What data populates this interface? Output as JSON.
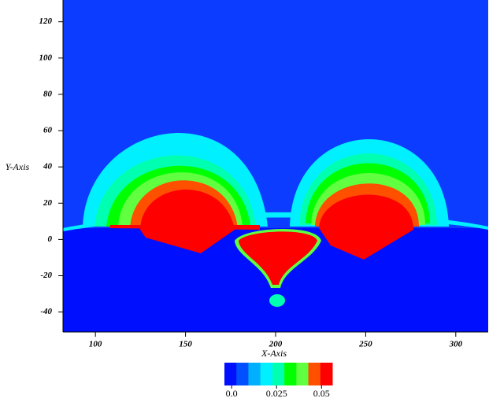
{
  "chart_data": {
    "type": "contour",
    "xlabel": "X-Axis",
    "ylabel": "Y-Axis",
    "xlim": [
      82,
      318
    ],
    "ylim": [
      -51,
      132
    ],
    "xticks": [
      100,
      150,
      200,
      250,
      300
    ],
    "yticks": [
      -40,
      -20,
      0,
      20,
      40,
      60,
      80,
      100,
      120
    ],
    "colorbar": {
      "clim": [
        -0.004,
        0.056
      ],
      "ticks": [
        {
          "value": 0,
          "label": "0.0"
        },
        0.025,
        0.05
      ],
      "colors": [
        "#0010ff",
        "#0050ff",
        "#00b0ff",
        "#00f0ff",
        "#00ffb0",
        "#00ff00",
        "#60ff40",
        "#ff5000",
        "#ff0000"
      ]
    },
    "background": "#0c3cff"
  }
}
